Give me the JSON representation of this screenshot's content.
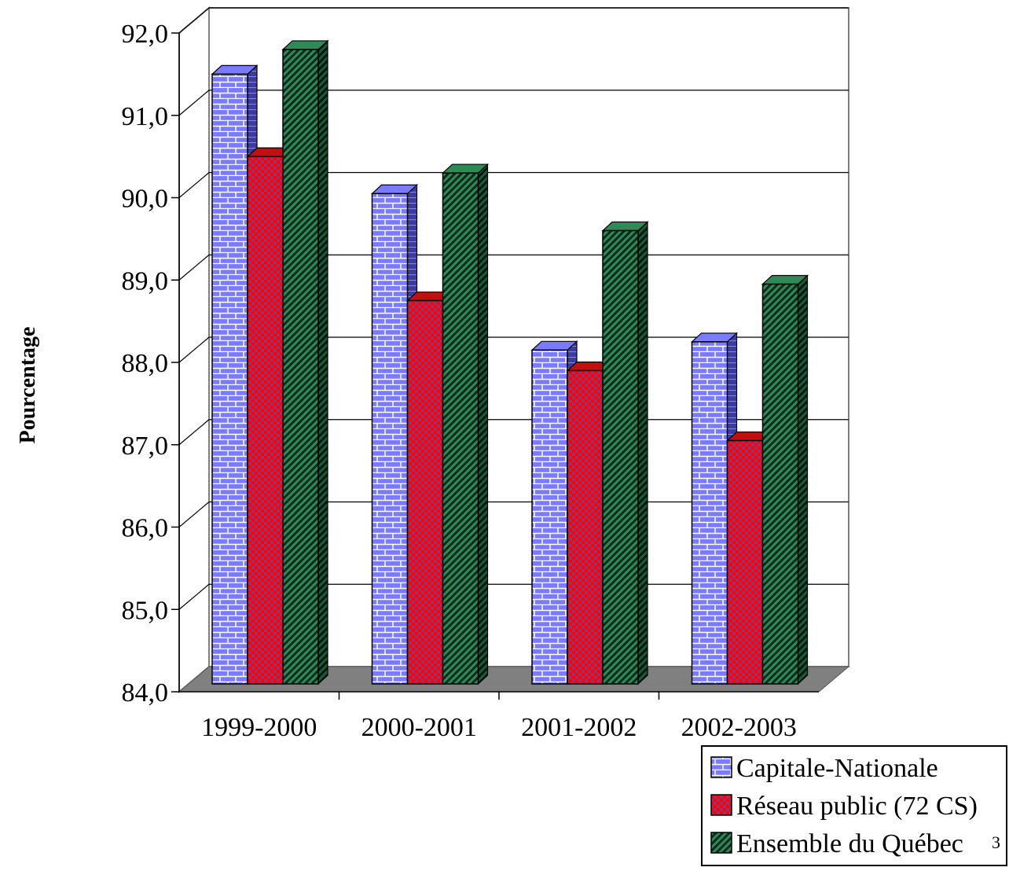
{
  "chart_data": {
    "type": "bar",
    "title": "",
    "xlabel": "",
    "ylabel": "Pourcentage",
    "ylim": [
      84.0,
      92.0
    ],
    "yticks": [
      "84,0",
      "85,0",
      "86,0",
      "87,0",
      "88,0",
      "89,0",
      "90,0",
      "91,0",
      "92,0"
    ],
    "categories": [
      "1999-2000",
      "2000-2001",
      "2001-2002",
      "2002-2003"
    ],
    "series": [
      {
        "name": "Capitale-Nationale",
        "values": [
          91.5,
          90.05,
          88.15,
          88.25
        ],
        "color": "#7B7BFF",
        "pattern": "brick"
      },
      {
        "name": "Réseau public (72 CS)",
        "values": [
          90.5,
          88.75,
          87.9,
          87.05
        ],
        "color": "#FF0000",
        "pattern": "checker"
      },
      {
        "name": "Ensemble du Québec",
        "values": [
          91.8,
          90.3,
          89.6,
          88.95
        ],
        "color": "#2E8B57",
        "pattern": "diagonal"
      }
    ],
    "legend": {
      "position": "bottom-right",
      "footnote_mark": "3"
    },
    "grid": true,
    "style": "3d"
  }
}
